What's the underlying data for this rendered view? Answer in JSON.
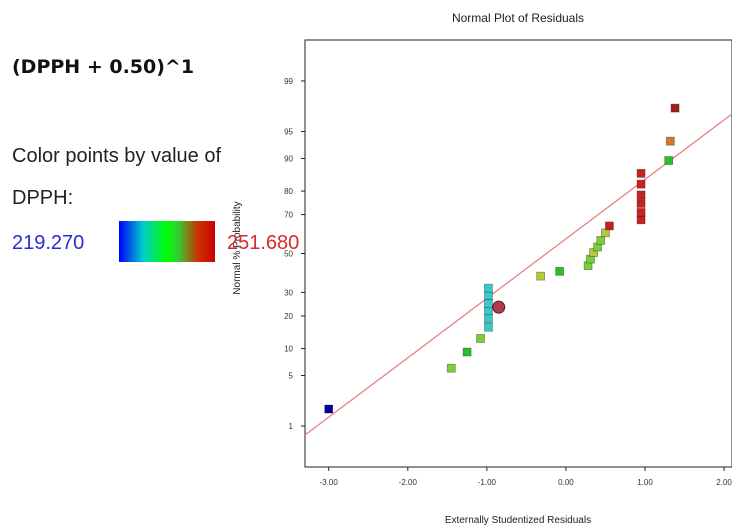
{
  "transform_label": "(DPPH + 0.50)^1",
  "color_by": {
    "line1": "Color points by value of",
    "line2": "DPPH:",
    "min_label": "219.270",
    "max_label": "251.680",
    "min_color": "#2b2bd6",
    "max_color": "#d62b2b"
  },
  "chart_data": {
    "type": "scatter",
    "title": "Normal Plot of Residuals",
    "xlabel": "Externally Studentized Residuals",
    "ylabel": "Normal % Probability",
    "xlim": [
      -3.3,
      2.1
    ],
    "ylim": [
      0.2,
      99.8
    ],
    "y_scale": "normal-probability",
    "grid": false,
    "x_ticks": [
      {
        "value": -3.0,
        "label": "-3.00"
      },
      {
        "value": -2.0,
        "label": "-2.00"
      },
      {
        "value": -1.0,
        "label": "-1.00"
      },
      {
        "value": 0.0,
        "label": "0.00"
      },
      {
        "value": 1.0,
        "label": "1.00"
      },
      {
        "value": 2.0,
        "label": "2.00"
      }
    ],
    "y_ticks": [
      {
        "value": 1,
        "label": "1"
      },
      {
        "value": 5,
        "label": "5"
      },
      {
        "value": 10,
        "label": "10"
      },
      {
        "value": 20,
        "label": "20"
      },
      {
        "value": 30,
        "label": "30"
      },
      {
        "value": 50,
        "label": "50"
      },
      {
        "value": 70,
        "label": "70"
      },
      {
        "value": 80,
        "label": "80"
      },
      {
        "value": 90,
        "label": "90"
      },
      {
        "value": 95,
        "label": "95"
      },
      {
        "value": 99,
        "label": "99"
      }
    ],
    "reference_line": {
      "color": "#e88080",
      "x": [
        -3.3,
        2.1
      ],
      "y": [
        0.72,
        97.0
      ]
    },
    "highlight_point": {
      "x": -0.85,
      "y": 23.5,
      "color": "#b03a4a"
    },
    "points": [
      {
        "x": -3.0,
        "y": 1.8,
        "color": "#0000a0"
      },
      {
        "x": -1.45,
        "y": 6.1,
        "color": "#7ccd3a"
      },
      {
        "x": -1.25,
        "y": 9.2,
        "color": "#2bbf2b"
      },
      {
        "x": -1.08,
        "y": 12.6,
        "color": "#7ccd3a"
      },
      {
        "x": -0.98,
        "y": 16.0,
        "color": "#3cc8c8"
      },
      {
        "x": -0.98,
        "y": 19.0,
        "color": "#3cc8c8"
      },
      {
        "x": -0.98,
        "y": 22.0,
        "color": "#3cc8c8"
      },
      {
        "x": -0.98,
        "y": 25.0,
        "color": "#3cc8c8"
      },
      {
        "x": -0.98,
        "y": 28.5,
        "color": "#3cc8c8"
      },
      {
        "x": -0.98,
        "y": 32.0,
        "color": "#3cc8c8"
      },
      {
        "x": -0.32,
        "y": 38.0,
        "color": "#b4c83c"
      },
      {
        "x": -0.08,
        "y": 40.5,
        "color": "#2bbf2b"
      },
      {
        "x": 0.28,
        "y": 43.5,
        "color": "#7ccd3a"
      },
      {
        "x": 0.31,
        "y": 47.0,
        "color": "#7ccd3a"
      },
      {
        "x": 0.35,
        "y": 50.5,
        "color": "#b4c83c"
      },
      {
        "x": 0.4,
        "y": 53.5,
        "color": "#7ccd3a"
      },
      {
        "x": 0.44,
        "y": 57.0,
        "color": "#7ccd3a"
      },
      {
        "x": 0.5,
        "y": 61.0,
        "color": "#b4c83c"
      },
      {
        "x": 0.55,
        "y": 64.5,
        "color": "#cc2020"
      },
      {
        "x": 0.95,
        "y": 67.5,
        "color": "#cc2020"
      },
      {
        "x": 0.95,
        "y": 71.0,
        "color": "#cc2020"
      },
      {
        "x": 0.95,
        "y": 75.0,
        "color": "#cc2020"
      },
      {
        "x": 0.95,
        "y": 78.5,
        "color": "#cc2020"
      },
      {
        "x": 0.95,
        "y": 82.5,
        "color": "#cc2020"
      },
      {
        "x": 0.95,
        "y": 86.0,
        "color": "#cc2020"
      },
      {
        "x": 1.3,
        "y": 89.5,
        "color": "#2bbf2b"
      },
      {
        "x": 1.32,
        "y": 93.5,
        "color": "#d07a2a"
      },
      {
        "x": 1.38,
        "y": 97.5,
        "color": "#a02020"
      }
    ]
  }
}
